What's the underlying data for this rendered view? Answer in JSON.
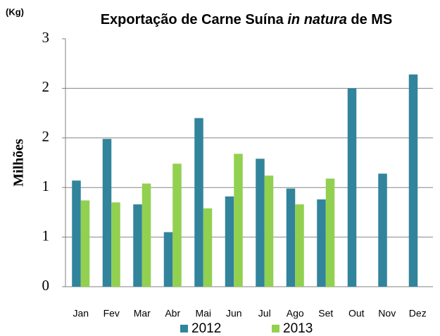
{
  "chart_data": {
    "type": "bar",
    "title_parts": [
      "Exportação de Carne Suína ",
      "in natura",
      " de MS"
    ],
    "unit_label": "(Kg)",
    "y_label": "Milhões",
    "categories": [
      "Jan",
      "Fev",
      "Mar",
      "Abr",
      "Mai",
      "Jun",
      "Jul",
      "Ago",
      "Set",
      "Out",
      "Nov",
      "Dez"
    ],
    "series": [
      {
        "name": "2012",
        "color": "#31849b",
        "values": [
          1.07,
          1.49,
          0.83,
          0.55,
          1.7,
          0.91,
          1.29,
          0.99,
          0.88,
          2.0,
          1.14,
          2.14
        ]
      },
      {
        "name": "2013",
        "color": "#92d050",
        "values": [
          0.87,
          0.85,
          1.04,
          1.24,
          0.79,
          1.34,
          1.12,
          0.83,
          1.09,
          null,
          null,
          null
        ]
      }
    ],
    "ylim": [
      0,
      2.5
    ],
    "yticks": [
      0,
      {
        "value": 0.5,
        "label": "1"
      },
      1,
      {
        "value": 1.5,
        "label": "2"
      },
      2,
      {
        "value": 2.5,
        "label": "3"
      }
    ],
    "grid": true
  }
}
